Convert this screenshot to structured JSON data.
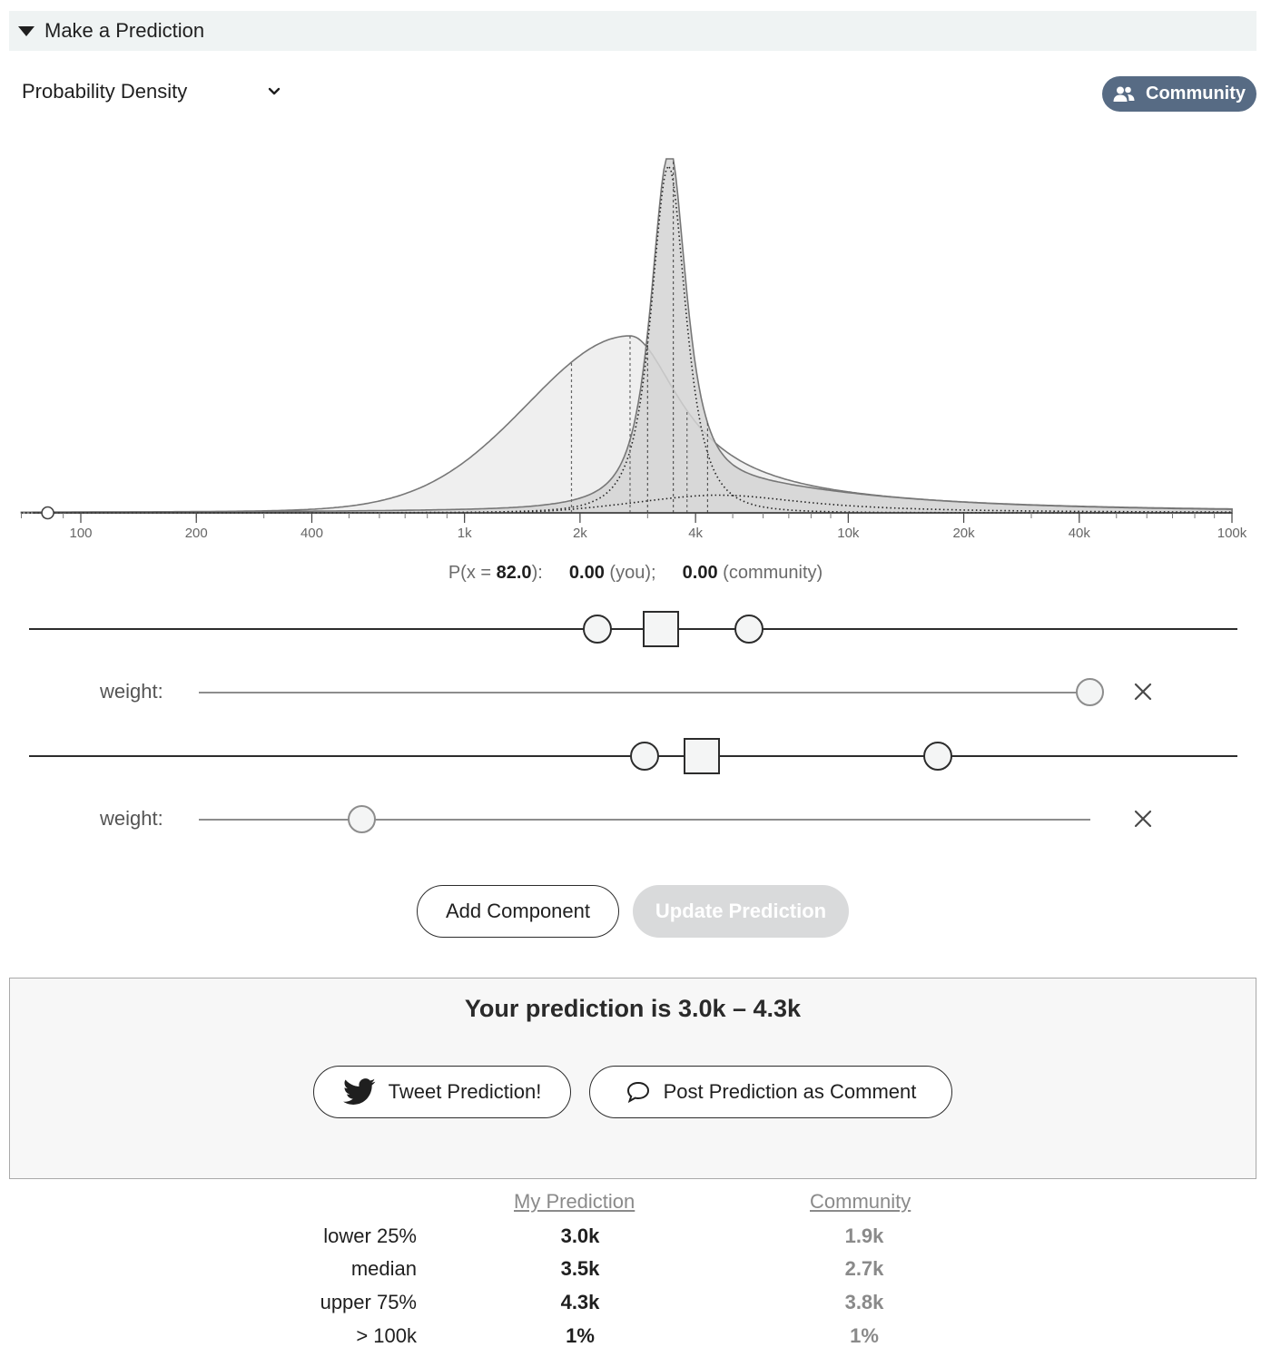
{
  "header": {
    "title": "Make a Prediction"
  },
  "view_select": {
    "value": "Probability Density"
  },
  "community_toggle": {
    "label": "Community",
    "color": "#576b84"
  },
  "chart_data": {
    "type": "area",
    "x_scale": "log",
    "xlim": [
      70,
      100000
    ],
    "x_ticks": [
      {
        "value": 100,
        "label": "100"
      },
      {
        "value": 200,
        "label": "200"
      },
      {
        "value": 400,
        "label": "400"
      },
      {
        "value": 1000,
        "label": "1k"
      },
      {
        "value": 2000,
        "label": "2k"
      },
      {
        "value": 4000,
        "label": "4k"
      },
      {
        "value": 10000,
        "label": "10k"
      },
      {
        "value": 20000,
        "label": "20k"
      },
      {
        "value": 40000,
        "label": "40k"
      },
      {
        "value": 100000,
        "label": "100k"
      }
    ],
    "series": [
      {
        "role": "community",
        "fill": "#efefef",
        "peak": 2700,
        "quartiles": [
          1900,
          2700,
          3800
        ],
        "relative_peak_height": 0.5
      },
      {
        "role": "my-prediction",
        "fill": "#d4d4d4",
        "peak": 3400,
        "quartiles": [
          3000,
          3500,
          4300
        ],
        "relative_peak_height": 1.0
      },
      {
        "role": "my-component-1",
        "style": "dotted",
        "peak": 3400
      },
      {
        "role": "my-component-2",
        "style": "dotted",
        "peak": 4600
      }
    ],
    "hover_marker_x": 82
  },
  "probability_readout": {
    "prefix": "P(x = ",
    "x_value": "82.0",
    "suffix": "):",
    "you_value": "0.00",
    "you_label": "(you);",
    "community_value": "0.00",
    "community_label": "(community)"
  },
  "components": [
    {
      "weight_label": "weight:",
      "weight": 1.0
    },
    {
      "weight_label": "weight:",
      "weight": 0.18
    }
  ],
  "actions": {
    "add_component": "Add Component",
    "update_prediction": "Update Prediction"
  },
  "result": {
    "title": "Your prediction is 3.0k – 4.3k",
    "tweet_button": "Tweet Prediction!",
    "comment_button": "Post Prediction as Comment"
  },
  "stats": {
    "headers": {
      "mine": "My Prediction",
      "community": "Community"
    },
    "rows": [
      {
        "label": "lower 25%",
        "mine": "3.0k",
        "community": "1.9k"
      },
      {
        "label": "median",
        "mine": "3.5k",
        "community": "2.7k"
      },
      {
        "label": "upper 75%",
        "mine": "4.3k",
        "community": "3.8k"
      },
      {
        "label": "> 100k",
        "mine": "1%",
        "community": "1%"
      }
    ]
  }
}
